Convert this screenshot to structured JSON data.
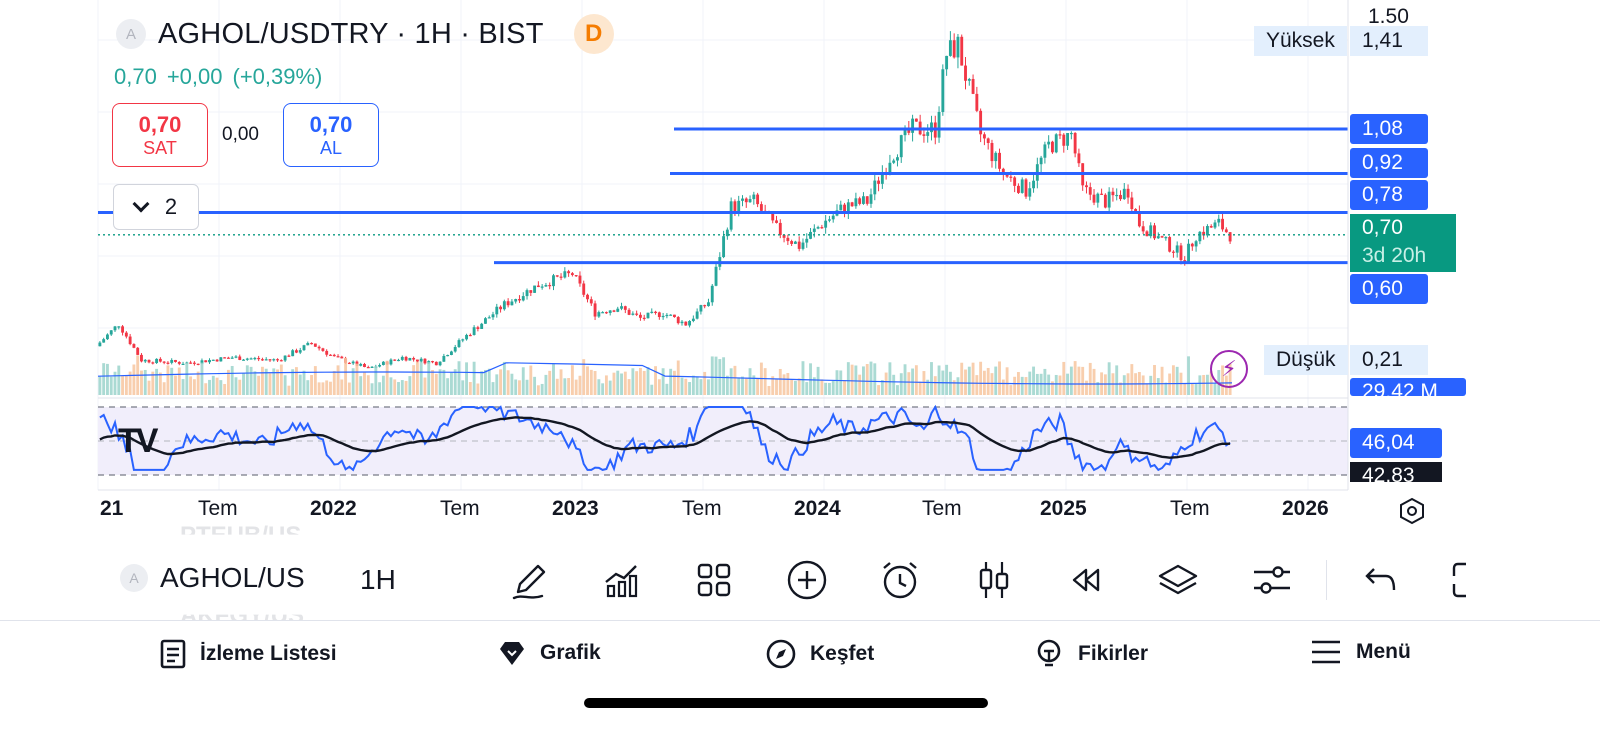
{
  "header": {
    "symbol_badge": "A",
    "title": "AGHOL/USDTRY · 1H · BIST",
    "data_badge": "D",
    "last_price": "0,70",
    "change": "+0,00",
    "change_pct": "(+0,39%)"
  },
  "trade": {
    "sell_price": "0,70",
    "sell_label": "SAT",
    "spread": "0,00",
    "buy_price": "0,70",
    "buy_label": "AL"
  },
  "indicator_toggle": {
    "count": "2"
  },
  "price_axis": {
    "top_tick": "1.50",
    "high_label": "Yüksek",
    "high_value": "1,41",
    "levels": [
      "1,08",
      "0,92",
      "0,78"
    ],
    "current_price": "0,70",
    "countdown": "3d 20h",
    "level_low": "0,60",
    "low_label": "Düşük",
    "low_value": "0,21",
    "volume": "29,42 M",
    "rsi": "46,04",
    "rsi_ma": "42,83"
  },
  "time_axis": {
    "labels": [
      {
        "text": "21",
        "year": true
      },
      {
        "text": "Tem",
        "year": false
      },
      {
        "text": "2022",
        "year": true
      },
      {
        "text": "Tem",
        "year": false
      },
      {
        "text": "2023",
        "year": true
      },
      {
        "text": "Tem",
        "year": false
      },
      {
        "text": "2024",
        "year": true
      },
      {
        "text": "Tem",
        "year": false
      },
      {
        "text": "2025",
        "year": true
      },
      {
        "text": "Tem",
        "year": false
      },
      {
        "text": "2026",
        "year": true
      }
    ]
  },
  "chart_data": {
    "type": "candlestick",
    "y_range": [
      0.15,
      1.5
    ],
    "horizontal_levels": [
      1.08,
      0.92,
      0.78,
      0.6
    ],
    "current_price": 0.7,
    "high": 1.41,
    "low": 0.21,
    "rsi_last": 46.04,
    "rsi_ma_last": 42.83,
    "colors": {
      "up": "#26a69a",
      "down": "#f23645",
      "levels": "#2962ff",
      "rsi": "#2962ff",
      "rsi_ma": "#131722"
    },
    "path": [
      [
        0.0,
        0.3
      ],
      [
        0.02,
        0.38
      ],
      [
        0.04,
        0.25
      ],
      [
        0.08,
        0.24
      ],
      [
        0.12,
        0.26
      ],
      [
        0.16,
        0.25
      ],
      [
        0.19,
        0.31
      ],
      [
        0.21,
        0.26
      ],
      [
        0.24,
        0.22
      ],
      [
        0.27,
        0.26
      ],
      [
        0.3,
        0.24
      ],
      [
        0.33,
        0.35
      ],
      [
        0.36,
        0.45
      ],
      [
        0.39,
        0.52
      ],
      [
        0.42,
        0.56
      ],
      [
        0.44,
        0.42
      ],
      [
        0.46,
        0.44
      ],
      [
        0.48,
        0.4
      ],
      [
        0.5,
        0.42
      ],
      [
        0.52,
        0.38
      ],
      [
        0.54,
        0.46
      ],
      [
        0.56,
        0.8
      ],
      [
        0.58,
        0.82
      ],
      [
        0.6,
        0.72
      ],
      [
        0.62,
        0.66
      ],
      [
        0.64,
        0.74
      ],
      [
        0.66,
        0.8
      ],
      [
        0.68,
        0.82
      ],
      [
        0.7,
        0.98
      ],
      [
        0.72,
        1.08
      ],
      [
        0.74,
        1.08
      ],
      [
        0.75,
        1.35
      ],
      [
        0.76,
        1.38
      ],
      [
        0.78,
        1.06
      ],
      [
        0.8,
        0.92
      ],
      [
        0.82,
        0.86
      ],
      [
        0.84,
        1.02
      ],
      [
        0.86,
        1.06
      ],
      [
        0.87,
        0.86
      ],
      [
        0.89,
        0.82
      ],
      [
        0.91,
        0.86
      ],
      [
        0.92,
        0.74
      ],
      [
        0.94,
        0.68
      ],
      [
        0.96,
        0.62
      ],
      [
        0.97,
        0.7
      ],
      [
        0.99,
        0.74
      ],
      [
        1.0,
        0.7
      ]
    ]
  },
  "toolbar": {
    "symbol_badge": "A",
    "symbol": "AGHOL/US",
    "interval": "1H",
    "ghost_above": "PTEUB/US",
    "ghost_below": "AKFGY/US",
    "icons": [
      "draw-pen-icon",
      "indicators-icon",
      "layouts-icon",
      "add-icon",
      "alarm-icon",
      "candles-icon",
      "replay-icon",
      "layers-icon",
      "settings-sliders-icon",
      "undo-icon",
      "fullscreen-icon"
    ]
  },
  "bottom_nav": {
    "watchlist": "İzleme Listesi",
    "chart": "Grafik",
    "explore": "Keşfet",
    "ideas": "Fikirler",
    "menu": "Menü"
  }
}
